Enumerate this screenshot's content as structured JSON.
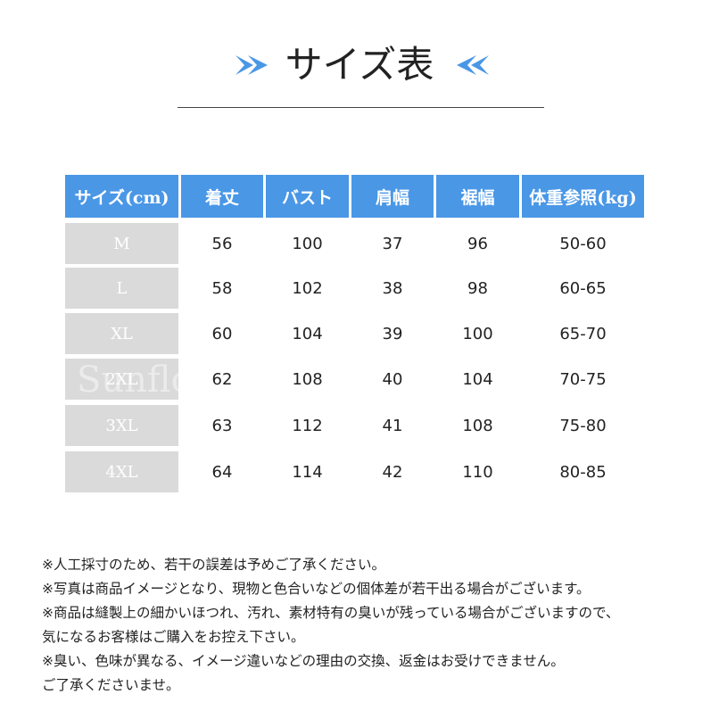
{
  "title": "サイズ表",
  "accent_color": "#4a97e6",
  "size_cell_color": "#dadada",
  "table": {
    "headers": [
      "サイズ(cm)",
      "着丈",
      "バスト",
      "肩幅",
      "裾幅",
      "体重参照(kg)"
    ],
    "rows": [
      [
        "M",
        "56",
        "100",
        "37",
        "96",
        "50-60"
      ],
      [
        "L",
        "58",
        "102",
        "38",
        "98",
        "60-65"
      ],
      [
        "XL",
        "60",
        "104",
        "39",
        "100",
        "65-70"
      ],
      [
        "2XL",
        "62",
        "108",
        "40",
        "104",
        "70-75"
      ],
      [
        "3XL",
        "63",
        "112",
        "41",
        "108",
        "75-80"
      ],
      [
        "4XL",
        "64",
        "114",
        "42",
        "110",
        "80-85"
      ]
    ]
  },
  "watermark": "Sunflo",
  "notes": [
    "※人工採寸のため、若干の誤差は予めご了承ください。",
    "※写真は商品イメージとなり、現物と色合いなどの個体差が若干出る場合がございます。",
    "※商品は縫製上の細かいほつれ、汚れ、素材特有の臭いが残っている場合がございますので、",
    "気になるお客様はご購入をお控え下さい。",
    "※臭い、色味が異なる、イメージ違いなどの理由の交換、返金はお受けできません。",
    "ご了承くださいませ。"
  ]
}
